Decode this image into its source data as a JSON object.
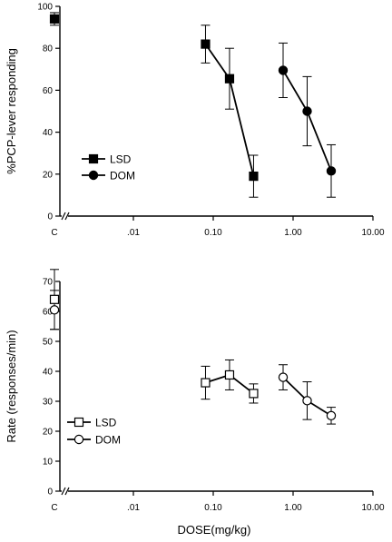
{
  "chart_data": [
    {
      "type": "line",
      "ylabel": "%PCP-lever responding",
      "xlabel": "",
      "xscale": "log",
      "x_ticks": [
        "C",
        ".01",
        "0.10",
        "1.00",
        "10.00"
      ],
      "y_ticks": [
        "0",
        "20",
        "40",
        "60",
        "80",
        "100"
      ],
      "ylim": [
        0,
        100
      ],
      "control": {
        "value": 94,
        "err": 3,
        "marker": "filled-square"
      },
      "legend_position": "lower-left",
      "series": [
        {
          "name": "LSD",
          "marker": "filled-square",
          "x": [
            0.08,
            0.16,
            0.32
          ],
          "y": [
            82,
            65.5,
            19
          ],
          "err": [
            9,
            14.5,
            10
          ]
        },
        {
          "name": "DOM",
          "marker": "filled-circle",
          "x": [
            0.75,
            1.5,
            3.0
          ],
          "y": [
            69.5,
            50,
            21.5
          ],
          "err": [
            13,
            16.5,
            12.5
          ]
        }
      ]
    },
    {
      "type": "line",
      "ylabel": "Rate (responses/min)",
      "xlabel": "DOSE(mg/kg)",
      "xscale": "log",
      "x_ticks": [
        "C",
        ".01",
        "0.10",
        "1.00",
        "10.00"
      ],
      "y_ticks": [
        "0",
        "10",
        "20",
        "30",
        "40",
        "50",
        "60",
        "70"
      ],
      "ylim": [
        0,
        70
      ],
      "legend_position": "lower-left",
      "series": [
        {
          "name": "LSD",
          "marker": "open-square",
          "control": {
            "value": 64,
            "err": 10
          },
          "x": [
            0.08,
            0.16,
            0.32
          ],
          "y": [
            36.2,
            38.8,
            32.6
          ],
          "err": [
            5.5,
            5.0,
            3.2
          ]
        },
        {
          "name": "DOM",
          "marker": "open-circle",
          "control": {
            "value": 60.5,
            "err": 6.5
          },
          "x": [
            0.75,
            1.5,
            3.0
          ],
          "y": [
            38,
            30.2,
            25.2
          ],
          "err": [
            4.2,
            6.3,
            2.8
          ]
        }
      ]
    }
  ]
}
